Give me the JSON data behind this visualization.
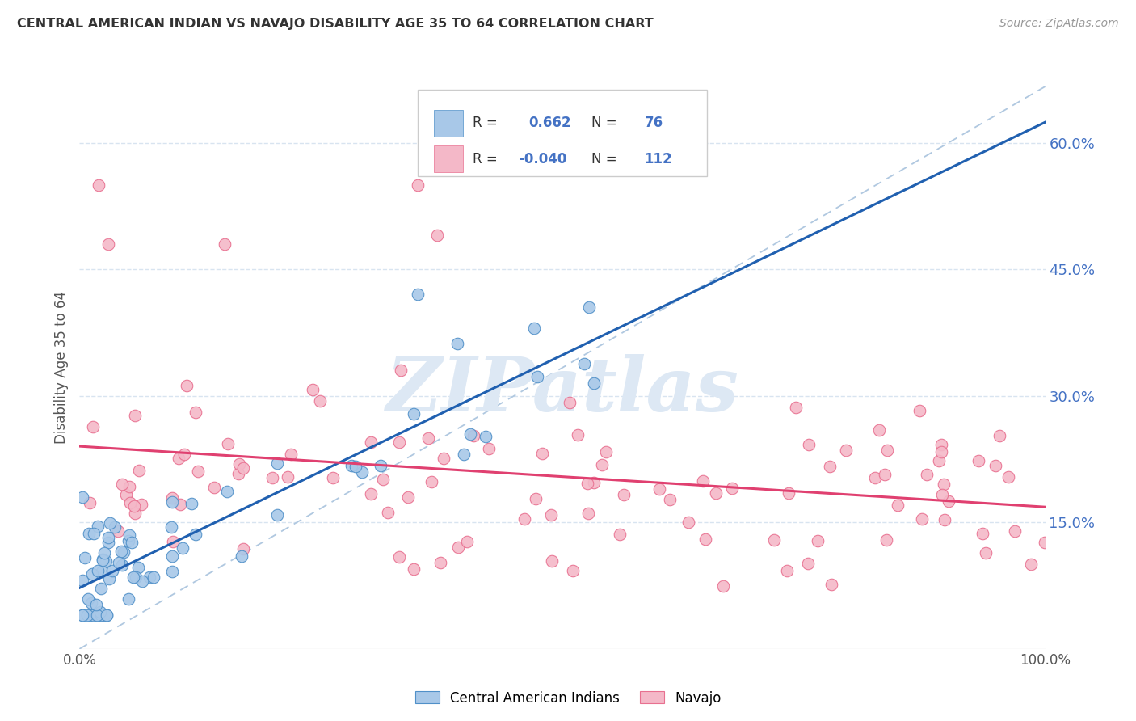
{
  "title": "CENTRAL AMERICAN INDIAN VS NAVAJO DISABILITY AGE 35 TO 64 CORRELATION CHART",
  "source": "Source: ZipAtlas.com",
  "ylabel": "Disability Age 35 to 64",
  "legend_blue_R": "0.662",
  "legend_blue_N": "76",
  "legend_pink_R": "-0.040",
  "legend_pink_N": "112",
  "legend_label_blue": "Central American Indians",
  "legend_label_pink": "Navajo",
  "blue_color": "#a8c8e8",
  "pink_color": "#f4b8c8",
  "blue_edge_color": "#5090c8",
  "pink_edge_color": "#e87090",
  "blue_line_color": "#2060b0",
  "pink_line_color": "#e04070",
  "diagonal_color": "#b0c8e0",
  "background_color": "#ffffff",
  "grid_color": "#d8e4f0",
  "title_color": "#333333",
  "source_color": "#999999",
  "right_tick_color": "#4472c4",
  "ylabel_color": "#555555",
  "ylim_max": 0.6667,
  "yticks": [
    0.15,
    0.3,
    0.45,
    0.6
  ],
  "ytick_labels": [
    "15.0%",
    "30.0%",
    "45.0%",
    "60.0%"
  ],
  "watermark_text": "ZIPatlas",
  "watermark_color": "#dde8f4"
}
